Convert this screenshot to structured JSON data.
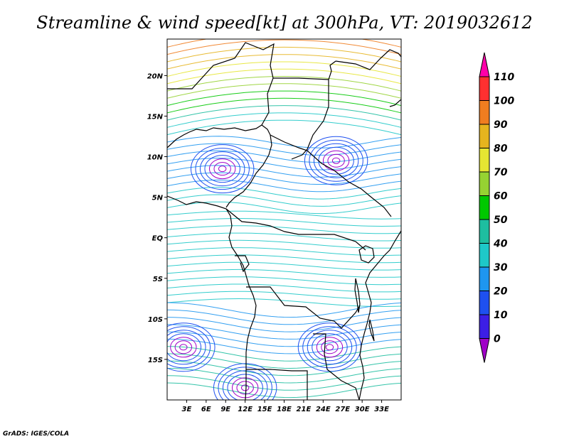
{
  "title": "Streamline & wind speed[kt] at 300hPa, VT: 2019032612",
  "credit": "GrADS: IGES/COLA",
  "map": {
    "lon_range": [
      0,
      36
    ],
    "lat_range": [
      -20,
      24.5
    ],
    "lat_labels": [
      "20N",
      "15N",
      "10N",
      "5N",
      "EQ",
      "5S",
      "10S",
      "15S"
    ],
    "lat_values": [
      20,
      15,
      10,
      5,
      0,
      -5,
      -10,
      -15
    ],
    "lon_labels": [
      "3E",
      "6E",
      "9E",
      "12E",
      "15E",
      "18E",
      "21E",
      "24E",
      "27E",
      "30E",
      "33E"
    ],
    "lon_values": [
      3,
      6,
      9,
      12,
      15,
      18,
      21,
      24,
      27,
      30,
      33
    ]
  },
  "colorbar": {
    "labels": [
      "110",
      "100",
      "90",
      "80",
      "70",
      "60",
      "50",
      "40",
      "30",
      "20",
      "10",
      "0"
    ],
    "colors": [
      "#ff00aa",
      "#ff3030",
      "#f07d20",
      "#e6b41e",
      "#e6e632",
      "#96d232",
      "#00c800",
      "#1ebea0",
      "#1ec8c8",
      "#1e96f0",
      "#1e50f0",
      "#3c1ee6",
      "#a000c8"
    ]
  }
}
